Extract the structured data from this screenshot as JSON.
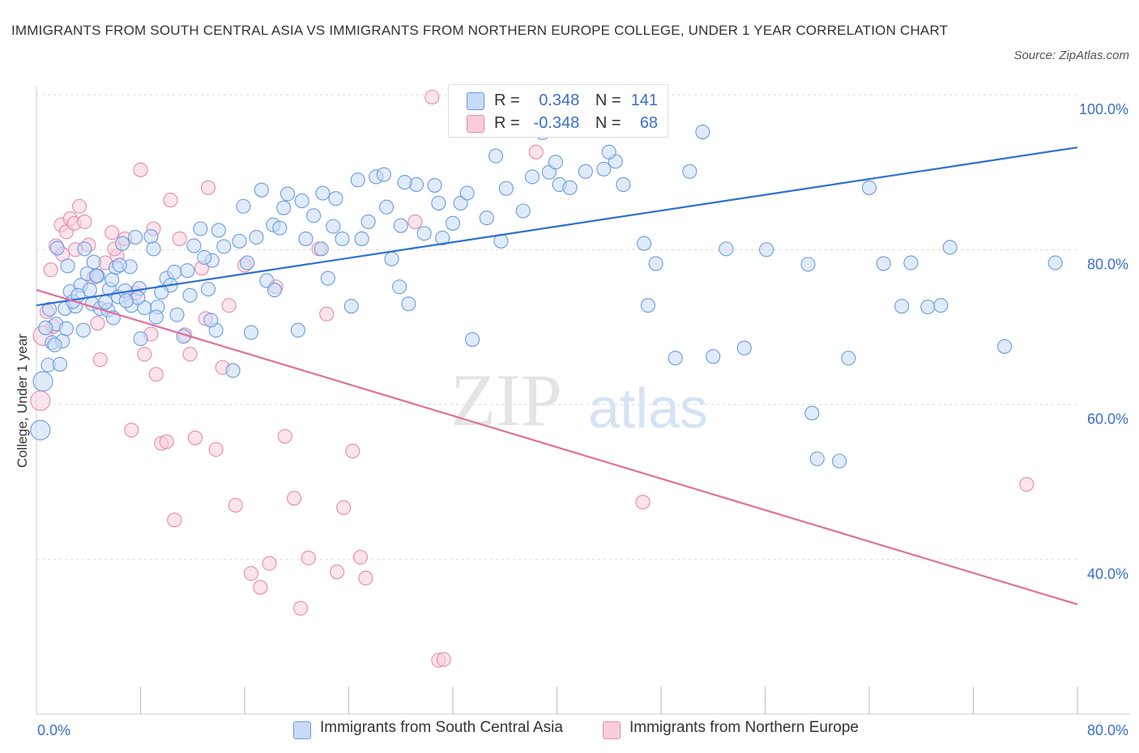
{
  "title": "IMMIGRANTS FROM SOUTH CENTRAL ASIA VS IMMIGRANTS FROM NORTHERN EUROPE COLLEGE, UNDER 1 YEAR CORRELATION CHART",
  "source": "Source: ZipAtlas.com",
  "watermark": {
    "zip": "ZIP",
    "atlas": "atlas"
  },
  "legend": {
    "row1": {
      "r_label": "R =",
      "r_value": "0.348",
      "n_label": "N =",
      "n_value": "141"
    },
    "row2": {
      "r_label": "R =",
      "r_value": "-0.348",
      "n_label": "N =",
      "n_value": "68"
    }
  },
  "colors": {
    "blue": "#6a9be0",
    "blue_fill": "#c7dbf6",
    "pink": "#e88aab",
    "pink_fill": "#f7cddb",
    "blue_line": "#2f6fcf",
    "pink_line": "#e0709a",
    "axis_text": "#3a6fc9"
  },
  "chart_data": {
    "type": "scatter",
    "title": "IMMIGRANTS FROM SOUTH CENTRAL ASIA VS IMMIGRANTS FROM NORTHERN EUROPE COLLEGE, UNDER 1 YEAR CORRELATION CHART",
    "xlabel": "",
    "ylabel": "College, Under 1 year",
    "xlim": [
      0,
      80
    ],
    "ylim": [
      20,
      100
    ],
    "x_tick_labels": [
      "0.0%",
      "80.0%"
    ],
    "y_tick_labels": [
      "100.0%",
      "80.0%",
      "60.0%",
      "40.0%"
    ],
    "y_ticks": [
      100,
      80,
      60,
      40
    ],
    "grid": true,
    "legend_position": "top-center",
    "series": [
      {
        "name": "Immigrants from South Central Asia",
        "color": "#6a9be0",
        "trend": {
          "x": [
            0,
            80
          ],
          "y": [
            72.8,
            93.2
          ]
        },
        "points": [
          [
            0.3,
            56.7
          ],
          [
            0.5,
            63.0
          ],
          [
            0.9,
            65.1
          ],
          [
            1.2,
            68.0
          ],
          [
            1.5,
            70.4
          ],
          [
            1.8,
            65.2
          ],
          [
            2.0,
            68.2
          ],
          [
            2.2,
            72.4
          ],
          [
            2.3,
            69.8
          ],
          [
            2.6,
            74.6
          ],
          [
            3.0,
            72.7
          ],
          [
            3.4,
            75.4
          ],
          [
            3.6,
            69.6
          ],
          [
            3.9,
            76.9
          ],
          [
            4.1,
            74.8
          ],
          [
            4.3,
            73.0
          ],
          [
            4.7,
            76.6
          ],
          [
            4.9,
            72.4
          ],
          [
            5.5,
            72.2
          ],
          [
            5.6,
            74.9
          ],
          [
            5.9,
            71.2
          ],
          [
            6.1,
            77.7
          ],
          [
            6.3,
            73.9
          ],
          [
            6.6,
            80.8
          ],
          [
            6.8,
            74.7
          ],
          [
            7.2,
            77.8
          ],
          [
            7.3,
            72.8
          ],
          [
            7.6,
            81.6
          ],
          [
            7.9,
            75.0
          ],
          [
            8.3,
            72.5
          ],
          [
            8.8,
            81.7
          ],
          [
            9.0,
            80.1
          ],
          [
            9.3,
            72.6
          ],
          [
            10.0,
            76.3
          ],
          [
            10.3,
            75.4
          ],
          [
            10.8,
            71.6
          ],
          [
            11.3,
            68.8
          ],
          [
            11.6,
            77.3
          ],
          [
            12.1,
            80.5
          ],
          [
            12.6,
            82.7
          ],
          [
            13.2,
            74.9
          ],
          [
            13.5,
            78.6
          ],
          [
            13.8,
            69.6
          ],
          [
            14.4,
            80.4
          ],
          [
            15.1,
            64.4
          ],
          [
            15.6,
            81.1
          ],
          [
            16.2,
            78.3
          ],
          [
            16.9,
            81.6
          ],
          [
            17.7,
            76.0
          ],
          [
            18.2,
            83.2
          ],
          [
            19.0,
            85.4
          ],
          [
            19.3,
            87.2
          ],
          [
            20.1,
            69.6
          ],
          [
            20.7,
            81.4
          ],
          [
            21.3,
            84.4
          ],
          [
            22.0,
            87.3
          ],
          [
            22.8,
            83.0
          ],
          [
            23.5,
            81.4
          ],
          [
            24.2,
            72.7
          ],
          [
            25.0,
            81.4
          ],
          [
            25.5,
            83.6
          ],
          [
            26.1,
            89.4
          ],
          [
            26.7,
            89.7
          ],
          [
            27.3,
            78.8
          ],
          [
            28.0,
            83.1
          ],
          [
            28.6,
            73.0
          ],
          [
            29.2,
            88.4
          ],
          [
            29.8,
            82.1
          ],
          [
            30.6,
            88.3
          ],
          [
            31.2,
            81.5
          ],
          [
            32.0,
            83.4
          ],
          [
            32.6,
            86.0
          ],
          [
            33.5,
            68.4
          ],
          [
            34.6,
            84.1
          ],
          [
            35.3,
            92.1
          ],
          [
            35.7,
            81.1
          ],
          [
            37.4,
            85.0
          ],
          [
            38.1,
            89.4
          ],
          [
            38.9,
            95.1
          ],
          [
            39.4,
            90.0
          ],
          [
            40.2,
            88.4
          ],
          [
            41.0,
            88.0
          ],
          [
            42.2,
            90.1
          ],
          [
            43.6,
            90.4
          ],
          [
            44.5,
            91.4
          ],
          [
            45.1,
            88.4
          ],
          [
            46.7,
            80.8
          ],
          [
            47.0,
            72.8
          ],
          [
            47.6,
            78.2
          ],
          [
            49.1,
            66.0
          ],
          [
            50.2,
            90.1
          ],
          [
            51.2,
            95.2
          ],
          [
            52.0,
            66.2
          ],
          [
            53.0,
            80.1
          ],
          [
            54.4,
            67.3
          ],
          [
            56.1,
            80.0
          ],
          [
            59.3,
            78.1
          ],
          [
            59.6,
            58.9
          ],
          [
            60.0,
            53.0
          ],
          [
            61.7,
            52.7
          ],
          [
            62.4,
            66.0
          ],
          [
            64.0,
            88.0
          ],
          [
            65.1,
            78.2
          ],
          [
            66.5,
            72.7
          ],
          [
            67.2,
            78.3
          ],
          [
            68.5,
            72.6
          ],
          [
            69.5,
            72.8
          ],
          [
            70.2,
            80.3
          ],
          [
            74.4,
            67.5
          ],
          [
            78.3,
            78.3
          ],
          [
            1.0,
            72.3
          ],
          [
            1.4,
            67.7
          ],
          [
            2.8,
            73.3
          ],
          [
            3.2,
            74.1
          ],
          [
            4.6,
            76.6
          ],
          [
            5.3,
            73.2
          ],
          [
            6.4,
            78.0
          ],
          [
            7.8,
            73.8
          ],
          [
            9.6,
            74.5
          ],
          [
            10.6,
            77.1
          ],
          [
            12.9,
            79.0
          ],
          [
            14.0,
            82.5
          ],
          [
            15.9,
            85.6
          ],
          [
            17.3,
            87.7
          ],
          [
            18.7,
            82.8
          ],
          [
            20.4,
            86.3
          ],
          [
            21.9,
            80.1
          ],
          [
            23.0,
            86.6
          ],
          [
            24.7,
            89.0
          ],
          [
            26.9,
            85.5
          ],
          [
            28.3,
            88.7
          ],
          [
            30.9,
            86.0
          ],
          [
            33.1,
            87.3
          ],
          [
            36.1,
            87.9
          ],
          [
            39.9,
            91.3
          ],
          [
            44.0,
            92.6
          ],
          [
            27.9,
            75.2
          ],
          [
            22.4,
            76.3
          ],
          [
            18.3,
            74.8
          ],
          [
            16.5,
            69.3
          ],
          [
            13.4,
            70.9
          ],
          [
            11.8,
            74.1
          ],
          [
            9.2,
            71.3
          ],
          [
            8.0,
            68.5
          ],
          [
            6.9,
            73.4
          ],
          [
            5.8,
            76.1
          ],
          [
            4.4,
            78.4
          ],
          [
            3.7,
            80.1
          ],
          [
            2.4,
            77.9
          ],
          [
            1.6,
            80.2
          ],
          [
            0.7,
            69.9
          ]
        ]
      },
      {
        "name": "Immigrants from Northern Europe",
        "color": "#e88aab",
        "trend": {
          "x": [
            0,
            80
          ],
          "y": [
            74.8,
            34.2
          ]
        },
        "points": [
          [
            0.3,
            60.5
          ],
          [
            0.5,
            68.9
          ],
          [
            0.8,
            72.0
          ],
          [
            1.1,
            77.4
          ],
          [
            1.5,
            80.5
          ],
          [
            1.9,
            83.2
          ],
          [
            2.3,
            82.3
          ],
          [
            2.6,
            84.0
          ],
          [
            2.9,
            83.4
          ],
          [
            3.3,
            85.6
          ],
          [
            3.7,
            83.6
          ],
          [
            4.0,
            80.6
          ],
          [
            4.4,
            76.4
          ],
          [
            4.9,
            65.8
          ],
          [
            5.3,
            78.3
          ],
          [
            5.8,
            82.2
          ],
          [
            6.2,
            79.2
          ],
          [
            6.8,
            81.4
          ],
          [
            7.3,
            56.7
          ],
          [
            8.0,
            90.3
          ],
          [
            8.3,
            66.5
          ],
          [
            8.8,
            69.1
          ],
          [
            9.2,
            63.9
          ],
          [
            9.6,
            55.0
          ],
          [
            10.0,
            55.2
          ],
          [
            10.6,
            45.1
          ],
          [
            11.0,
            81.4
          ],
          [
            11.4,
            69.0
          ],
          [
            11.8,
            66.5
          ],
          [
            12.2,
            55.7
          ],
          [
            12.7,
            77.6
          ],
          [
            13.2,
            88.0
          ],
          [
            13.8,
            54.2
          ],
          [
            14.3,
            64.8
          ],
          [
            14.8,
            72.8
          ],
          [
            15.3,
            47.0
          ],
          [
            16.0,
            78.0
          ],
          [
            16.5,
            38.2
          ],
          [
            17.2,
            36.4
          ],
          [
            17.9,
            39.5
          ],
          [
            18.4,
            75.2
          ],
          [
            19.1,
            55.9
          ],
          [
            19.8,
            47.9
          ],
          [
            20.3,
            33.7
          ],
          [
            20.9,
            40.2
          ],
          [
            21.7,
            80.1
          ],
          [
            22.3,
            71.7
          ],
          [
            23.1,
            38.4
          ],
          [
            23.6,
            46.7
          ],
          [
            24.3,
            54.0
          ],
          [
            24.9,
            40.3
          ],
          [
            25.3,
            37.6
          ],
          [
            29.1,
            83.6
          ],
          [
            30.4,
            99.7
          ],
          [
            30.9,
            27.0
          ],
          [
            31.3,
            27.1
          ],
          [
            38.4,
            92.6
          ],
          [
            46.6,
            47.4
          ],
          [
            76.1,
            49.7
          ],
          [
            3.0,
            80.0
          ],
          [
            4.7,
            70.5
          ],
          [
            7.6,
            74.4
          ],
          [
            10.3,
            86.4
          ],
          [
            13.0,
            71.1
          ],
          [
            9.0,
            82.7
          ],
          [
            6.0,
            80.1
          ],
          [
            1.3,
            70.1
          ],
          [
            2.0,
            79.4
          ]
        ]
      }
    ]
  }
}
